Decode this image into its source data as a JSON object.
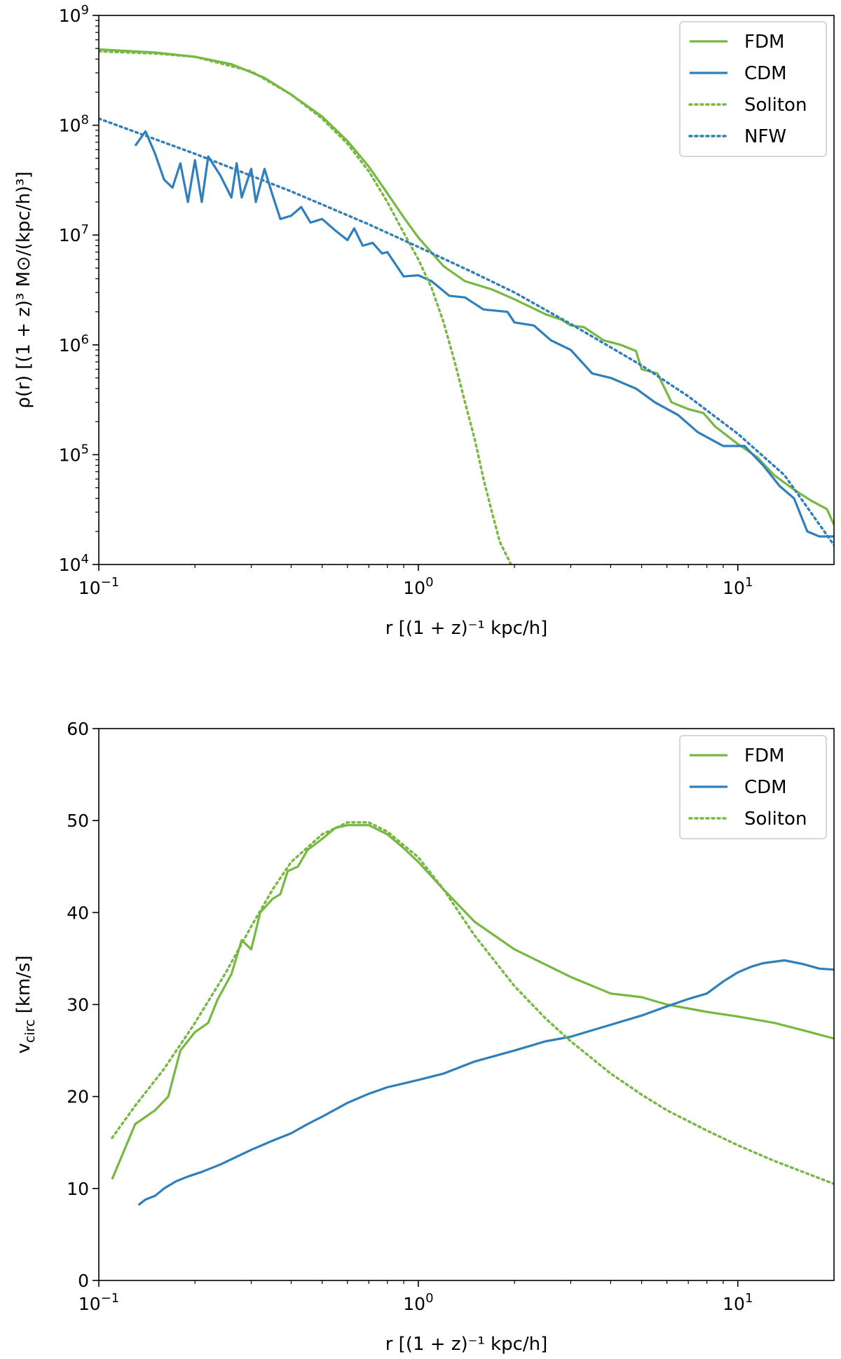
{
  "chart_data": [
    {
      "type": "line",
      "panel": "top",
      "xscale": "log",
      "yscale": "log",
      "xlim": [
        0.1,
        20
      ],
      "ylim": [
        10000,
        1000000000
      ],
      "xlabel": "r [(1 + z)⁻¹ kpc/h]",
      "ylabel": "ρ(r) [(1 + z)³ M⊙/(kpc/h)³]",
      "x_ticks": [
        {
          "value": 0.1,
          "base": "10",
          "exp": "−1"
        },
        {
          "value": 1,
          "base": "10",
          "exp": "0"
        },
        {
          "value": 10,
          "base": "10",
          "exp": "1"
        }
      ],
      "y_ticks": [
        {
          "value": 10000,
          "base": "10",
          "exp": "4"
        },
        {
          "value": 100000,
          "base": "10",
          "exp": "5"
        },
        {
          "value": 1000000,
          "base": "10",
          "exp": "6"
        },
        {
          "value": 10000000,
          "base": "10",
          "exp": "7"
        },
        {
          "value": 100000000,
          "base": "10",
          "exp": "8"
        },
        {
          "value": 1000000000,
          "base": "10",
          "exp": "9"
        }
      ],
      "legend_position": "top-right",
      "series": [
        {
          "name": "FDM",
          "color": "#77b843",
          "style": "solid",
          "points": [
            [
              0.1,
              490000000.0
            ],
            [
              0.15,
              460000000.0
            ],
            [
              0.2,
              420000000.0
            ],
            [
              0.26,
              360000000.0
            ],
            [
              0.33,
              270000000.0
            ],
            [
              0.4,
              190000000.0
            ],
            [
              0.5,
              120000000.0
            ],
            [
              0.6,
              72000000.0
            ],
            [
              0.7,
              42000000.0
            ],
            [
              0.8,
              24000000.0
            ],
            [
              0.9,
              14500000.0
            ],
            [
              1.0,
              9500000.0
            ],
            [
              1.2,
              5200000.0
            ],
            [
              1.4,
              3800000.0
            ],
            [
              1.7,
              3200000.0
            ],
            [
              2.0,
              2600000.0
            ],
            [
              2.5,
              1900000.0
            ],
            [
              2.8,
              1700000.0
            ],
            [
              3.0,
              1500000.0
            ],
            [
              3.3,
              1450000.0
            ],
            [
              3.8,
              1100000.0
            ],
            [
              4.3,
              1000000.0
            ],
            [
              4.8,
              880000.0
            ],
            [
              5.0,
              600000.0
            ],
            [
              5.6,
              550000.0
            ],
            [
              6.2,
              300000.0
            ],
            [
              7.0,
              260000.0
            ],
            [
              7.8,
              240000.0
            ],
            [
              8.5,
              180000.0
            ],
            [
              10.0,
              125000.0
            ],
            [
              11.5,
              95000.0
            ],
            [
              13.0,
              65000.0
            ],
            [
              15.0,
              48000.0
            ],
            [
              17.0,
              38000.0
            ],
            [
              19.0,
              32000.0
            ],
            [
              20.0,
              23000.0
            ]
          ]
        },
        {
          "name": "CDM",
          "color": "#2f7fbc",
          "style": "solid",
          "points": [
            [
              0.13,
              65000000.0
            ],
            [
              0.14,
              88000000.0
            ],
            [
              0.15,
              55000000.0
            ],
            [
              0.16,
              32000000.0
            ],
            [
              0.17,
              27000000.0
            ],
            [
              0.18,
              45000000.0
            ],
            [
              0.19,
              20000000.0
            ],
            [
              0.2,
              48000000.0
            ],
            [
              0.21,
              20000000.0
            ],
            [
              0.22,
              52000000.0
            ],
            [
              0.24,
              35000000.0
            ],
            [
              0.26,
              22000000.0
            ],
            [
              0.27,
              45000000.0
            ],
            [
              0.28,
              22000000.0
            ],
            [
              0.3,
              40000000.0
            ],
            [
              0.31,
              20000000.0
            ],
            [
              0.33,
              40000000.0
            ],
            [
              0.35,
              23000000.0
            ],
            [
              0.37,
              14000000.0
            ],
            [
              0.4,
              15000000.0
            ],
            [
              0.43,
              18000000.0
            ],
            [
              0.46,
              13000000.0
            ],
            [
              0.5,
              14000000.0
            ],
            [
              0.55,
              11000000.0
            ],
            [
              0.6,
              9000000.0
            ],
            [
              0.63,
              11500000.0
            ],
            [
              0.67,
              8000000.0
            ],
            [
              0.72,
              8500000.0
            ],
            [
              0.77,
              6800000.0
            ],
            [
              0.8,
              7000000.0
            ],
            [
              0.9,
              4200000.0
            ],
            [
              1.0,
              4300000.0
            ],
            [
              1.1,
              3800000.0
            ],
            [
              1.25,
              2800000.0
            ],
            [
              1.4,
              2700000.0
            ],
            [
              1.6,
              2100000.0
            ],
            [
              1.9,
              2000000.0
            ],
            [
              2.0,
              1600000.0
            ],
            [
              2.3,
              1500000.0
            ],
            [
              2.6,
              1100000.0
            ],
            [
              3.0,
              900000.0
            ],
            [
              3.5,
              550000.0
            ],
            [
              4.0,
              500000.0
            ],
            [
              4.8,
              400000.0
            ],
            [
              5.5,
              300000.0
            ],
            [
              6.5,
              230000.0
            ],
            [
              7.5,
              160000.0
            ],
            [
              9.0,
              120000.0
            ],
            [
              10.5,
              120000.0
            ],
            [
              12.0,
              80000.0
            ],
            [
              13.5,
              52000.0
            ],
            [
              15.0,
              40000.0
            ],
            [
              16.5,
              20000.0
            ],
            [
              18.0,
              18000.0
            ],
            [
              20.0,
              18000.0
            ]
          ]
        },
        {
          "name": "Soliton",
          "color": "#77b843",
          "style": "dotted",
          "points": [
            [
              0.1,
              470000000.0
            ],
            [
              0.15,
              450000000.0
            ],
            [
              0.2,
              420000000.0
            ],
            [
              0.3,
              310000000.0
            ],
            [
              0.4,
              190000000.0
            ],
            [
              0.5,
              115000000.0
            ],
            [
              0.6,
              68000000.0
            ],
            [
              0.7,
              38000000.0
            ],
            [
              0.8,
              20000000.0
            ],
            [
              0.9,
              10500000.0
            ],
            [
              1.0,
              6000000.0
            ],
            [
              1.1,
              3300000.0
            ],
            [
              1.2,
              1600000.0
            ],
            [
              1.3,
              700000.0
            ],
            [
              1.4,
              300000.0
            ],
            [
              1.5,
              140000.0
            ],
            [
              1.6,
              60000.0
            ],
            [
              1.7,
              30000.0
            ],
            [
              1.8,
              16000.0
            ],
            [
              1.95,
              10000.0
            ]
          ]
        },
        {
          "name": "NFW",
          "color": "#2f7fbc",
          "style": "dotted",
          "points": [
            [
              0.1,
              115000000.0
            ],
            [
              0.2,
              55000000.0
            ],
            [
              0.4,
              25000000.0
            ],
            [
              0.7,
              12500000.0
            ],
            [
              1.0,
              7800000.0
            ],
            [
              1.5,
              4500000.0
            ],
            [
              2.0,
              3000000.0
            ],
            [
              3.0,
              1550000.0
            ],
            [
              5.0,
              650000.0
            ],
            [
              7.0,
              340000.0
            ],
            [
              10.0,
              155000.0
            ],
            [
              14.0,
              65000.0
            ],
            [
              20.0,
              15000.0
            ]
          ]
        }
      ]
    },
    {
      "type": "line",
      "panel": "bottom",
      "xscale": "log",
      "yscale": "linear",
      "xlim": [
        0.1,
        20
      ],
      "ylim": [
        0,
        60
      ],
      "xlabel": "r [(1 + z)⁻¹ kpc/h]",
      "ylabel": "v",
      "ylabel_sub": "circ",
      "ylabel_unit": " [km/s]",
      "x_ticks": [
        {
          "value": 0.1,
          "base": "10",
          "exp": "−1"
        },
        {
          "value": 1,
          "base": "10",
          "exp": "0"
        },
        {
          "value": 10,
          "base": "10",
          "exp": "1"
        }
      ],
      "y_ticks": [
        {
          "value": 0,
          "label": "0"
        },
        {
          "value": 10,
          "label": "10"
        },
        {
          "value": 20,
          "label": "20"
        },
        {
          "value": 30,
          "label": "30"
        },
        {
          "value": 40,
          "label": "40"
        },
        {
          "value": 50,
          "label": "50"
        },
        {
          "value": 60,
          "label": "60"
        }
      ],
      "legend_position": "top-right",
      "series": [
        {
          "name": "FDM",
          "color": "#77b843",
          "style": "solid",
          "points": [
            [
              0.11,
              11
            ],
            [
              0.13,
              17
            ],
            [
              0.15,
              18.5
            ],
            [
              0.165,
              20
            ],
            [
              0.18,
              25
            ],
            [
              0.2,
              27
            ],
            [
              0.22,
              28
            ],
            [
              0.235,
              30.5
            ],
            [
              0.26,
              33.3
            ],
            [
              0.28,
              37
            ],
            [
              0.3,
              36
            ],
            [
              0.32,
              40
            ],
            [
              0.35,
              41.5
            ],
            [
              0.37,
              42
            ],
            [
              0.39,
              44.5
            ],
            [
              0.42,
              45
            ],
            [
              0.45,
              46.8
            ],
            [
              0.5,
              48
            ],
            [
              0.55,
              49.2
            ],
            [
              0.6,
              49.5
            ],
            [
              0.7,
              49.5
            ],
            [
              0.8,
              48.5
            ],
            [
              0.9,
              47
            ],
            [
              1.0,
              45.5
            ],
            [
              1.2,
              42.5
            ],
            [
              1.5,
              39
            ],
            [
              2.0,
              36
            ],
            [
              3.0,
              33
            ],
            [
              4.0,
              31.2
            ],
            [
              5.0,
              30.8
            ],
            [
              6.0,
              30.0
            ],
            [
              8.0,
              29.2
            ],
            [
              10.0,
              28.7
            ],
            [
              13.0,
              28.0
            ],
            [
              16.0,
              27.2
            ],
            [
              20.0,
              26.3
            ]
          ]
        },
        {
          "name": "CDM",
          "color": "#2f7fbc",
          "style": "solid",
          "points": [
            [
              0.133,
              8.2
            ],
            [
              0.14,
              8.8
            ],
            [
              0.15,
              9.2
            ],
            [
              0.16,
              10
            ],
            [
              0.175,
              10.8
            ],
            [
              0.19,
              11.3
            ],
            [
              0.21,
              11.8
            ],
            [
              0.24,
              12.6
            ],
            [
              0.3,
              14.2
            ],
            [
              0.35,
              15.2
            ],
            [
              0.4,
              16
            ],
            [
              0.45,
              17
            ],
            [
              0.5,
              17.8
            ],
            [
              0.6,
              19.3
            ],
            [
              0.7,
              20.3
            ],
            [
              0.8,
              21
            ],
            [
              1.0,
              21.8
            ],
            [
              1.2,
              22.5
            ],
            [
              1.5,
              23.8
            ],
            [
              2.0,
              25
            ],
            [
              2.5,
              26
            ],
            [
              3.0,
              26.5
            ],
            [
              4.0,
              27.8
            ],
            [
              5.0,
              28.8
            ],
            [
              6.0,
              29.8
            ],
            [
              7.0,
              30.6
            ],
            [
              8.0,
              31.2
            ],
            [
              9.0,
              32.5
            ],
            [
              10.0,
              33.5
            ],
            [
              11.0,
              34.1
            ],
            [
              12.0,
              34.5
            ],
            [
              14.0,
              34.8
            ],
            [
              16.0,
              34.4
            ],
            [
              18.0,
              33.9
            ],
            [
              20.0,
              33.8
            ]
          ]
        },
        {
          "name": "Soliton",
          "color": "#77b843",
          "style": "dotted",
          "points": [
            [
              0.11,
              15.5
            ],
            [
              0.13,
              19
            ],
            [
              0.16,
              23
            ],
            [
              0.2,
              28
            ],
            [
              0.25,
              33.5
            ],
            [
              0.3,
              38.5
            ],
            [
              0.35,
              42.5
            ],
            [
              0.4,
              45.5
            ],
            [
              0.5,
              48.5
            ],
            [
              0.6,
              49.8
            ],
            [
              0.7,
              49.8
            ],
            [
              0.8,
              48.8
            ],
            [
              1.0,
              46
            ],
            [
              1.2,
              42.5
            ],
            [
              1.5,
              37.5
            ],
            [
              2.0,
              32
            ],
            [
              2.5,
              28.5
            ],
            [
              3.0,
              26
            ],
            [
              4.0,
              22.5
            ],
            [
              5.0,
              20.2
            ],
            [
              6.0,
              18.5
            ],
            [
              8.0,
              16.3
            ],
            [
              10.0,
              14.7
            ],
            [
              13.0,
              13
            ],
            [
              16.0,
              11.8
            ],
            [
              20.0,
              10.5
            ]
          ]
        }
      ]
    }
  ]
}
